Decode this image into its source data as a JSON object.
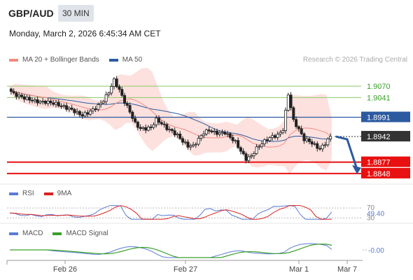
{
  "header": {
    "pair": "GBP/AUD",
    "timeframe": "30 MIN",
    "timestamp": "Monday, March 2, 2026 6:45:34 AM CET"
  },
  "credit": "Research © 2026 Trading Central",
  "legends": {
    "main": [
      {
        "label": "MA 20 + Bollinger Bands",
        "color": "#f28b82"
      },
      {
        "label": "MA 50",
        "color": "#2c5aa0"
      }
    ],
    "rsi": [
      {
        "label": "RSI",
        "color": "#5b7bd5"
      },
      {
        "label": "9MA",
        "color": "#d92020"
      }
    ],
    "macd": [
      {
        "label": "MACD",
        "color": "#5b7bd5"
      },
      {
        "label": "MACD Signal",
        "color": "#3aa02a"
      }
    ]
  },
  "colors": {
    "resistance": "#8cc96a",
    "resistance_text": "#3aa02a",
    "pivot": "#2c5aa0",
    "current": "#333333",
    "support": "#e81010",
    "bollinger": "#fcd9d6",
    "ma20": "#f28b82",
    "ma50": "#2c5aa0",
    "arrow": "#2c5aa0"
  },
  "chart_data": {
    "type": "candlestick",
    "y_range": [
      1.883,
      1.912
    ],
    "x_labels": [
      "Feb 26",
      "Feb 27",
      "Mar 1",
      "Mar 7"
    ],
    "levels": [
      {
        "value": 1.907,
        "label": "1.9070",
        "kind": "resistance"
      },
      {
        "value": 1.9041,
        "label": "1.9041",
        "kind": "resistance"
      },
      {
        "value": 1.8991,
        "label": "1.8991",
        "kind": "pivot"
      },
      {
        "value": 1.8942,
        "label": "1.8942",
        "kind": "current"
      },
      {
        "value": 1.8877,
        "label": "1.8877",
        "kind": "support"
      },
      {
        "value": 1.8848,
        "label": "1.8848",
        "kind": "support"
      }
    ],
    "price_path": [
      1.9063,
      1.905,
      1.9045,
      1.904,
      1.9036,
      1.9032,
      1.903,
      1.903,
      1.9028,
      1.9025,
      1.902,
      1.9015,
      1.901,
      1.9002,
      1.8996,
      1.9002,
      1.901,
      1.902,
      1.9034,
      1.9055,
      1.9085,
      1.906,
      1.903,
      1.9005,
      1.8975,
      1.8962,
      1.8962,
      1.8965,
      1.8985,
      1.8975,
      1.8963,
      1.8955,
      1.8945,
      1.893,
      1.8918,
      1.8918,
      1.8935,
      1.8952,
      1.8958,
      1.8952,
      1.895,
      1.8952,
      1.894,
      1.8928,
      1.8905,
      1.8885,
      1.8892,
      1.8912,
      1.8925,
      1.8935,
      1.8942,
      1.8945,
      1.896,
      1.905,
      1.8982,
      1.896,
      1.8935,
      1.893,
      1.892,
      1.891,
      1.8925,
      1.8942
    ],
    "forecast_target": 1.885,
    "rsi": {
      "levels": [
        {
          "value": 70,
          "label": "70"
        },
        {
          "value": 30,
          "label": "30"
        }
      ],
      "current": 49.4,
      "current_label": "49.40"
    },
    "macd": {
      "current": 0.0,
      "current_label": "-0.00"
    }
  }
}
